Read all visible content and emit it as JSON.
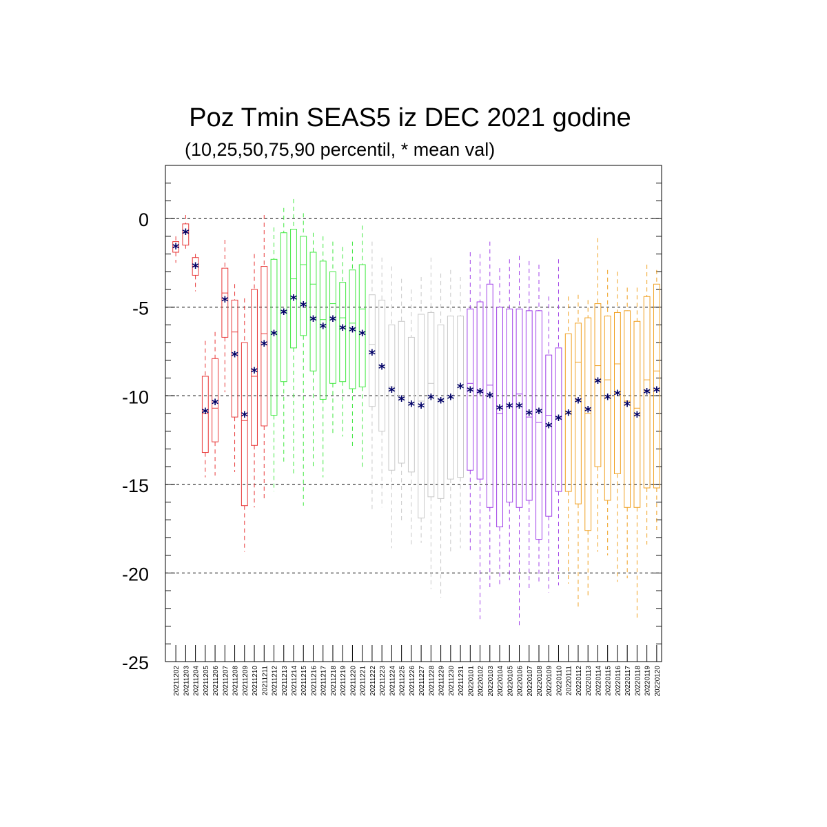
{
  "header": {
    "title": "Poz Tmin SEAS5 iz DEC 2021 godine",
    "subtitle": "(10,25,50,75,90 percentil, * mean val)"
  },
  "colors": {
    "mean_marker": "#000066",
    "gridline": "#000000",
    "groups": [
      "#e83838",
      "#40e840",
      "#c8c8c8",
      "#a040e8",
      "#f0a020"
    ]
  },
  "chart_data": {
    "type": "box",
    "title": "Poz Tmin SEAS5 iz DEC 2021 godine",
    "subtitle": "(10,25,50,75,90 percentil, * mean val)",
    "ylim": [
      -25,
      3
    ],
    "yticks": [
      0,
      -5,
      -10,
      -15,
      -20,
      -25
    ],
    "grid": "dashed horizontal at major ticks",
    "categories": [
      "20211202",
      "20211203",
      "20211204",
      "20211205",
      "20211206",
      "20211207",
      "20211208",
      "20211209",
      "20211210",
      "20211211",
      "20211212",
      "20211213",
      "20211214",
      "20211215",
      "20211216",
      "20211217",
      "20211218",
      "20211219",
      "20211220",
      "20211221",
      "20211222",
      "20211223",
      "20211224",
      "20211225",
      "20211226",
      "20211227",
      "20211228",
      "20211229",
      "20211230",
      "20211231",
      "20220101",
      "20220102",
      "20220103",
      "20220104",
      "20220105",
      "20220106",
      "20220107",
      "20220108",
      "20220109",
      "20220110",
      "20220111",
      "20220112",
      "20220113",
      "20220114",
      "20220115",
      "20220116",
      "20220117",
      "20220118",
      "20220119",
      "20220120"
    ],
    "group_of_box": [
      0,
      0,
      0,
      0,
      0,
      0,
      0,
      0,
      0,
      0,
      1,
      1,
      1,
      1,
      1,
      1,
      1,
      1,
      1,
      1,
      2,
      2,
      2,
      2,
      2,
      2,
      2,
      2,
      2,
      2,
      3,
      3,
      3,
      3,
      3,
      3,
      3,
      3,
      3,
      3,
      4,
      4,
      4,
      4,
      4,
      4,
      4,
      4,
      4,
      4
    ],
    "boxes": [
      {
        "p10": -2.5,
        "p25": -1.9,
        "p50": -1.6,
        "p75": -1.3,
        "p90": -1.0,
        "mean": -1.6
      },
      {
        "p10": -1.7,
        "p25": -1.5,
        "p50": -0.8,
        "p75": -0.3,
        "p90": 0.2,
        "mean": -0.8
      },
      {
        "p10": -4.1,
        "p25": -3.2,
        "p50": -2.7,
        "p75": -2.2,
        "p90": -2.0,
        "mean": -2.7
      },
      {
        "p10": -14.6,
        "p25": -13.2,
        "p50": -11.0,
        "p75": -8.9,
        "p90": -6.9,
        "mean": -10.9
      },
      {
        "p10": -14.5,
        "p25": -12.6,
        "p50": -10.7,
        "p75": -7.9,
        "p90": -6.4,
        "mean": -10.4
      },
      {
        "p10": -9.8,
        "p25": -6.7,
        "p50": -4.2,
        "p75": -2.8,
        "p90": -1.2,
        "mean": -4.6
      },
      {
        "p10": -14.3,
        "p25": -11.2,
        "p50": -6.4,
        "p75": -4.6,
        "p90": -3.7,
        "mean": -7.7
      },
      {
        "p10": -18.8,
        "p25": -16.2,
        "p50": -11.4,
        "p75": -7.0,
        "p90": -4.5,
        "mean": -11.1
      },
      {
        "p10": -16.3,
        "p25": -12.8,
        "p50": -8.9,
        "p75": -4.0,
        "p90": -2.0,
        "mean": -8.6
      },
      {
        "p10": -15.9,
        "p25": -11.7,
        "p50": -6.5,
        "p75": -2.7,
        "p90": 0.2,
        "mean": -7.1
      },
      {
        "p10": -15.4,
        "p25": -11.1,
        "p50": -6.5,
        "p75": -2.3,
        "p90": -0.5,
        "mean": -6.5
      },
      {
        "p10": -13.9,
        "p25": -9.2,
        "p50": -5.2,
        "p75": -0.8,
        "p90": 0.6,
        "mean": -5.3
      },
      {
        "p10": -14.5,
        "p25": -7.3,
        "p50": -3.4,
        "p75": -0.6,
        "p90": 1.1,
        "mean": -4.5
      },
      {
        "p10": -16.2,
        "p25": -6.6,
        "p50": -2.6,
        "p75": -1.0,
        "p90": 0.3,
        "mean": -4.9
      },
      {
        "p10": -14.0,
        "p25": -8.6,
        "p50": -3.7,
        "p75": -1.9,
        "p90": -0.8,
        "mean": -5.7
      },
      {
        "p10": -14.6,
        "p25": -10.2,
        "p50": -5.7,
        "p75": -2.4,
        "p90": -1.0,
        "mean": -6.1
      },
      {
        "p10": -12.1,
        "p25": -9.3,
        "p50": -4.8,
        "p75": -3.0,
        "p90": -1.3,
        "mean": -5.7
      },
      {
        "p10": -12.3,
        "p25": -9.2,
        "p50": -5.6,
        "p75": -3.6,
        "p90": -1.6,
        "mean": -6.2
      },
      {
        "p10": -13.0,
        "p25": -9.6,
        "p50": -5.9,
        "p75": -2.9,
        "p90": -1.3,
        "mean": -6.3
      },
      {
        "p10": -14.1,
        "p25": -9.5,
        "p50": -5.1,
        "p75": -2.6,
        "p90": -0.4,
        "mean": -6.5
      },
      {
        "p10": -16.5,
        "p25": -10.6,
        "p50": -7.1,
        "p75": -4.3,
        "p90": -1.3,
        "mean": -7.6
      },
      {
        "p10": -16.3,
        "p25": -12.0,
        "p50": -8.3,
        "p75": -4.6,
        "p90": -2.2,
        "mean": -8.4
      },
      {
        "p10": -18.6,
        "p25": -14.2,
        "p50": -9.5,
        "p75": -6.0,
        "p90": -2.7,
        "mean": -9.7
      },
      {
        "p10": -17.2,
        "p25": -13.8,
        "p50": -10.1,
        "p75": -5.8,
        "p90": -3.4,
        "mean": -10.2
      },
      {
        "p10": -18.5,
        "p25": -14.3,
        "p50": -10.4,
        "p75": -6.7,
        "p90": -4.0,
        "mean": -10.5
      },
      {
        "p10": -18.3,
        "p25": -16.9,
        "p50": -10.3,
        "p75": -5.4,
        "p90": -3.3,
        "mean": -10.6
      },
      {
        "p10": -20.9,
        "p25": -15.7,
        "p50": -9.3,
        "p75": -5.3,
        "p90": -2.2,
        "mean": -10.1
      },
      {
        "p10": -21.4,
        "p25": -15.8,
        "p50": -10.2,
        "p75": -6.0,
        "p90": -3.1,
        "mean": -10.3
      },
      {
        "p10": -18.9,
        "p25": -14.7,
        "p50": -10.1,
        "p75": -5.5,
        "p90": -2.9,
        "mean": -10.1
      },
      {
        "p10": -18.6,
        "p25": -14.6,
        "p50": -9.5,
        "p75": -5.5,
        "p90": -3.3,
        "mean": -9.5
      },
      {
        "p10": -18.9,
        "p25": -14.2,
        "p50": -9.3,
        "p75": -5.1,
        "p90": -1.9,
        "mean": -9.7
      },
      {
        "p10": -22.6,
        "p25": -14.7,
        "p50": -9.8,
        "p75": -4.7,
        "p90": -2.0,
        "mean": -9.8
      },
      {
        "p10": -20.8,
        "p25": -16.3,
        "p50": -9.4,
        "p75": -3.7,
        "p90": -1.3,
        "mean": -10.0
      },
      {
        "p10": -20.7,
        "p25": -17.4,
        "p50": -11.0,
        "p75": -5.0,
        "p90": -2.8,
        "mean": -10.7
      },
      {
        "p10": -20.4,
        "p25": -16.0,
        "p50": -10.6,
        "p75": -5.1,
        "p90": -2.3,
        "mean": -10.6
      },
      {
        "p10": -23.0,
        "p25": -16.3,
        "p50": -9.9,
        "p75": -5.1,
        "p90": -2.1,
        "mean": -10.6
      },
      {
        "p10": -21.0,
        "p25": -15.9,
        "p50": -11.2,
        "p75": -5.2,
        "p90": -2.4,
        "mean": -11.0
      },
      {
        "p10": -20.5,
        "p25": -18.1,
        "p50": -11.5,
        "p75": -5.2,
        "p90": -2.6,
        "mean": -10.9
      },
      {
        "p10": -21.1,
        "p25": -16.8,
        "p50": -11.1,
        "p75": -7.7,
        "p90": -4.4,
        "mean": -11.7
      },
      {
        "p10": -20.7,
        "p25": -15.4,
        "p50": -11.2,
        "p75": -7.3,
        "p90": -2.3,
        "mean": -11.3
      },
      {
        "p10": -20.6,
        "p25": -15.4,
        "p50": -11.0,
        "p75": -6.5,
        "p90": -4.4,
        "mean": -11.0
      },
      {
        "p10": -22.0,
        "p25": -16.1,
        "p50": -8.1,
        "p75": -5.9,
        "p90": -4.3,
        "mean": -10.3
      },
      {
        "p10": -21.4,
        "p25": -17.6,
        "p50": -11.0,
        "p75": -5.6,
        "p90": -4.6,
        "mean": -10.8
      },
      {
        "p10": -18.8,
        "p25": -14.0,
        "p50": -8.3,
        "p75": -4.8,
        "p90": -1.1,
        "mean": -9.2
      },
      {
        "p10": -19.0,
        "p25": -15.9,
        "p50": -9.1,
        "p75": -5.5,
        "p90": -2.9,
        "mean": -10.1
      },
      {
        "p10": -20.5,
        "p25": -14.4,
        "p50": -8.2,
        "p75": -5.3,
        "p90": -3.0,
        "mean": -9.9
      },
      {
        "p10": -20.3,
        "p25": -16.3,
        "p50": -10.3,
        "p75": -5.2,
        "p90": -3.9,
        "mean": -10.5
      },
      {
        "p10": -22.6,
        "p25": -16.3,
        "p50": -10.7,
        "p75": -5.8,
        "p90": -3.9,
        "mean": -11.1
      },
      {
        "p10": -18.4,
        "p25": -15.2,
        "p50": -9.1,
        "p75": -4.4,
        "p90": -2.6,
        "mean": -9.8
      },
      {
        "p10": -17.7,
        "p25": -15.2,
        "p50": -8.6,
        "p75": -3.7,
        "p90": -2.9,
        "mean": -9.7
      }
    ]
  }
}
